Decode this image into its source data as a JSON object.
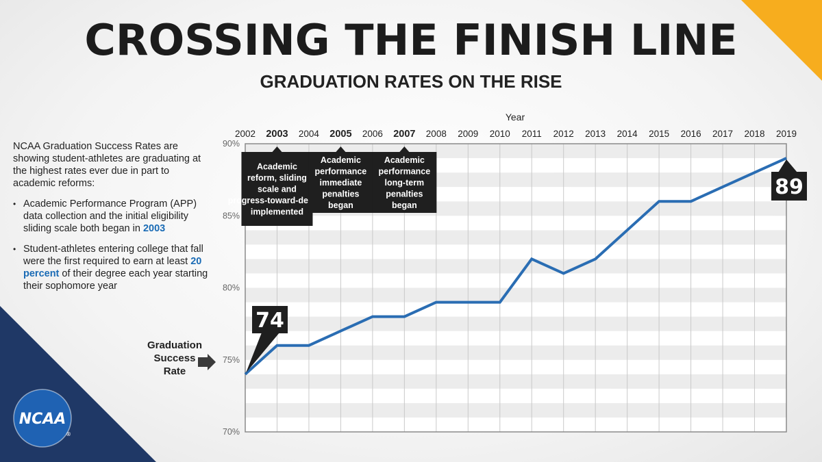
{
  "header": {
    "title": "CROSSING THE FINISH LINE",
    "subtitle": "GRADUATION RATES ON THE RISE"
  },
  "intro": {
    "paragraph": "NCAA Graduation Success Rates are showing student-athletes are graduating at the highest rates ever due in part to academic reforms:",
    "bullets": [
      {
        "before": "Academic Performance Program (APP) data collection and the initial eligibility sliding scale both began in ",
        "highlight": "2003",
        "after": ""
      },
      {
        "before": "Student-athletes entering college that fall were the first required to earn at least ",
        "highlight": "20 percent",
        "after": " of their degree each year starting their sophomore year"
      }
    ]
  },
  "side_label": "Graduation Success Rate",
  "logo": {
    "text": "NCAA",
    "registered": "®"
  },
  "colors": {
    "line": "#2a6db3",
    "highlight": "#1a6bb5",
    "callout_bg": "#1f1f1f",
    "corner_top_right": "#f7ad1e",
    "corner_bottom_left": "#1f3866",
    "logo_blue": "#1f62b3"
  },
  "chart_data": {
    "type": "line",
    "title": "CROSSING THE FINISH LINE",
    "subtitle": "GRADUATION RATES ON THE RISE",
    "xlabel": "Year",
    "ylabel": "Graduation Success Rate",
    "x": [
      2002,
      2003,
      2004,
      2005,
      2006,
      2007,
      2008,
      2009,
      2010,
      2011,
      2012,
      2013,
      2014,
      2015,
      2016,
      2017,
      2018,
      2019
    ],
    "x_bold": [
      2003,
      2005,
      2007
    ],
    "ylim": [
      70,
      90
    ],
    "y_ticks": [
      70,
      75,
      80,
      85,
      90
    ],
    "y_tick_labels": [
      "70%",
      "75%",
      "80%",
      "85%",
      "90%"
    ],
    "x_axis_position": "top",
    "grid": true,
    "series": [
      {
        "values": [
          74,
          76,
          76,
          77,
          78,
          78,
          79,
          79,
          79,
          82,
          81,
          82,
          84,
          86,
          86,
          87,
          88,
          89
        ]
      }
    ],
    "value_callouts": [
      {
        "x": 2002,
        "label": "74"
      },
      {
        "x": 2019,
        "label": "89"
      }
    ],
    "annotations": [
      {
        "x": 2003,
        "text": "Academic reform, sliding scale and progress-toward-degree implemented"
      },
      {
        "x": 2005,
        "text": "Academic performance immediate penalties began"
      },
      {
        "x": 2007,
        "text": "Academic performance long-term penalties began"
      }
    ]
  }
}
